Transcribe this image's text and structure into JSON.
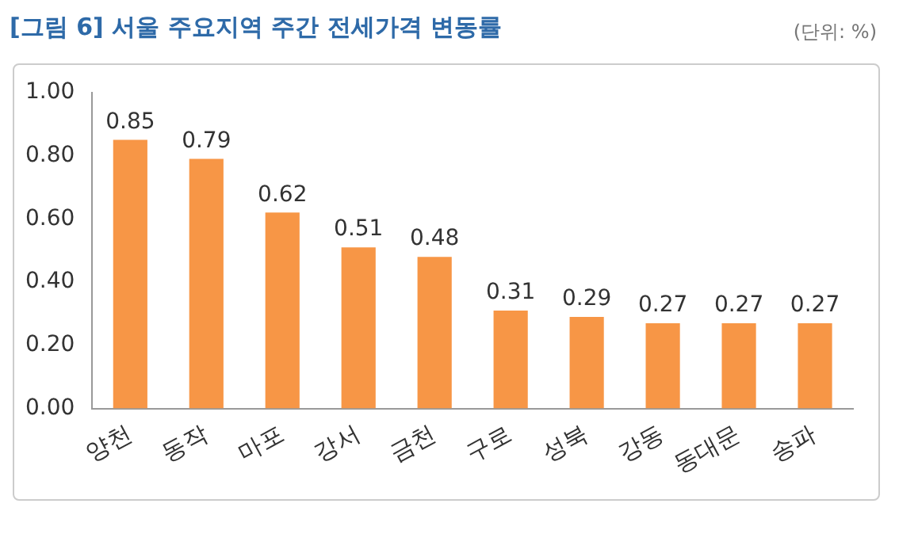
{
  "chart_data": {
    "type": "bar",
    "title": "[그림 6] 서울 주요지역 주간 전세가격 변동률",
    "annotations": [
      "(단위: %)"
    ],
    "categories": [
      "양천",
      "동작",
      "마포",
      "강서",
      "금천",
      "구로",
      "성북",
      "강동",
      "동대문",
      "송파"
    ],
    "values": [
      0.85,
      0.79,
      0.62,
      0.51,
      0.48,
      0.31,
      0.29,
      0.27,
      0.27,
      0.27
    ],
    "color": "#f79646",
    "ylim": [
      0,
      1
    ],
    "yticks": [
      {
        "value": 0,
        "label": "0.00"
      },
      {
        "value": 0.2,
        "label": "0.20"
      },
      {
        "value": 0.4,
        "label": "0.40"
      },
      {
        "value": 0.6,
        "label": "0.60"
      },
      {
        "value": 0.8,
        "label": "0.80"
      },
      {
        "value": 1,
        "label": "1.00"
      }
    ],
    "grid": false,
    "legend": false,
    "data_labels": true
  }
}
